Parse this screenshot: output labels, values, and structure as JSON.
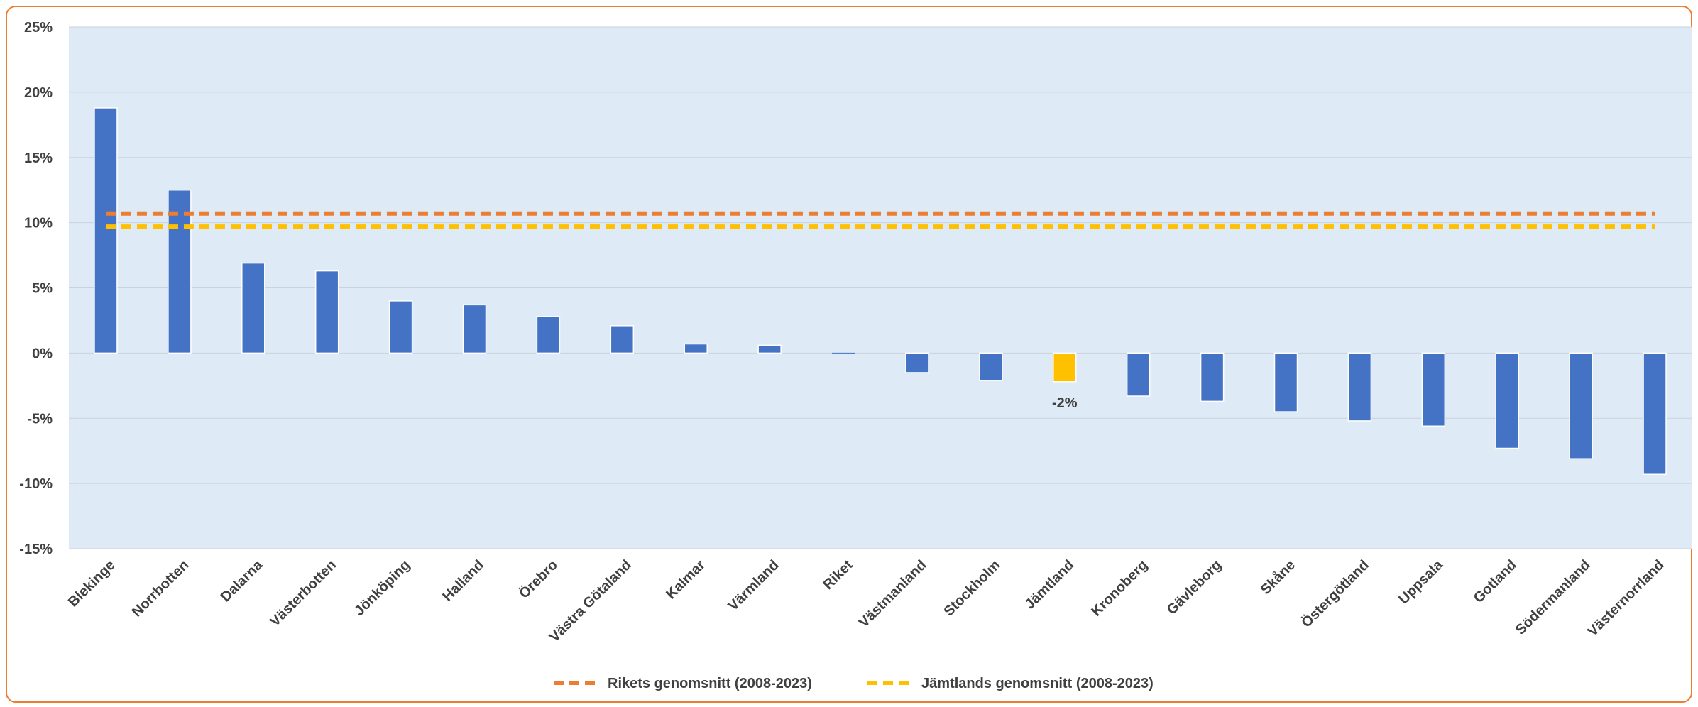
{
  "chart_data": {
    "type": "bar",
    "title": "",
    "xlabel": "",
    "ylabel": "",
    "ylim": [
      -15,
      25
    ],
    "yticks": [
      -15,
      -10,
      -5,
      0,
      5,
      10,
      15,
      20,
      25
    ],
    "ytick_labels": [
      "-15%",
      "-10%",
      "-5%",
      "0%",
      "5%",
      "10%",
      "15%",
      "20%",
      "25%"
    ],
    "grid": true,
    "plot_background": "#DEEAF6",
    "grid_color": "#C9D3DD",
    "categories": [
      "Blekinge",
      "Norrbotten",
      "Dalarna",
      "Västerbotten",
      "Jönköping",
      "Halland",
      "Örebro",
      "Västra Götaland",
      "Kalmar",
      "Värmland",
      "Riket",
      "Västmanland",
      "Stockholm",
      "Jämtland",
      "Kronoberg",
      "Gävleborg",
      "Skåne",
      "Östergötland",
      "Uppsala",
      "Gotland",
      "Södermanland",
      "Västernorrland"
    ],
    "values": [
      18.8,
      12.5,
      6.9,
      6.3,
      4.0,
      3.7,
      2.8,
      2.1,
      0.7,
      0.6,
      0.0,
      -1.5,
      -2.1,
      -2.2,
      -3.3,
      -3.7,
      -4.5,
      -5.2,
      -5.6,
      -7.3,
      -8.1,
      -9.3
    ],
    "bar_color": "#4472C4",
    "highlight": {
      "category": "Jämtland",
      "color": "#FFC000",
      "label": "-2%"
    },
    "reference_lines": [
      {
        "name": "Rikets genomsnitt (2008-2023)",
        "value": 10.7,
        "color": "#ED7D31",
        "style": "dashed"
      },
      {
        "name": "Jämtlands genomsnitt (2008-2023)",
        "value": 9.7,
        "color": "#FFC000",
        "style": "dashed"
      }
    ],
    "legend_position": "bottom"
  }
}
